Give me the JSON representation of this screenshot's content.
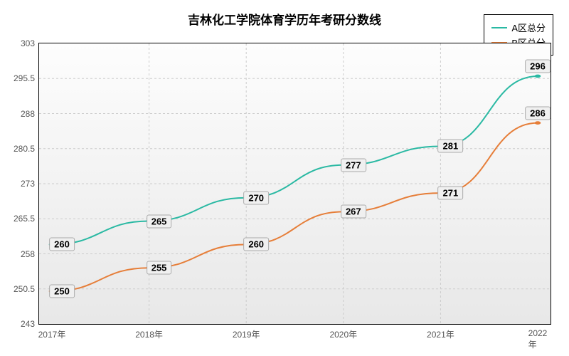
{
  "chart": {
    "type": "line",
    "title": "吉林化工学院体育学历年考研分数线",
    "title_fontsize": 17,
    "background_gradient_top": "#fdfdfd",
    "background_gradient_bottom": "#e8e8e8",
    "border_color": "#000000",
    "grid_color": "#cccccc",
    "grid_dash": "3 3",
    "text_color": "#555555",
    "xlim": [
      2017,
      2022
    ],
    "ylim": [
      243,
      303
    ],
    "ytick_step": 7.5,
    "yticks": [
      243,
      250.5,
      258,
      265.5,
      273,
      280.5,
      288,
      295.5,
      303
    ],
    "x_categories": [
      "2017年",
      "2018年",
      "2019年",
      "2020年",
      "2021年",
      "2022年"
    ],
    "x_values": [
      2017,
      2018,
      2019,
      2020,
      2021,
      2022
    ],
    "label_fontsize": 12,
    "data_label_fontsize": 13,
    "legend_border": "#000000",
    "legend_bg": "#ffffff",
    "line_width": 2,
    "marker_radius": 3,
    "series": [
      {
        "name": "A区总分",
        "color": "#2ab9a3",
        "values": [
          260,
          265,
          270,
          277,
          281,
          296
        ],
        "label_offsets_x": [
          14,
          14,
          14,
          14,
          14,
          0
        ],
        "label_offsets_y": [
          0,
          0,
          0,
          0,
          0,
          -14
        ]
      },
      {
        "name": "B区总分",
        "color": "#e67e39",
        "values": [
          250,
          255,
          260,
          267,
          271,
          286
        ],
        "label_offsets_x": [
          14,
          14,
          14,
          14,
          14,
          0
        ],
        "label_offsets_y": [
          0,
          0,
          0,
          0,
          0,
          -14
        ]
      }
    ]
  }
}
